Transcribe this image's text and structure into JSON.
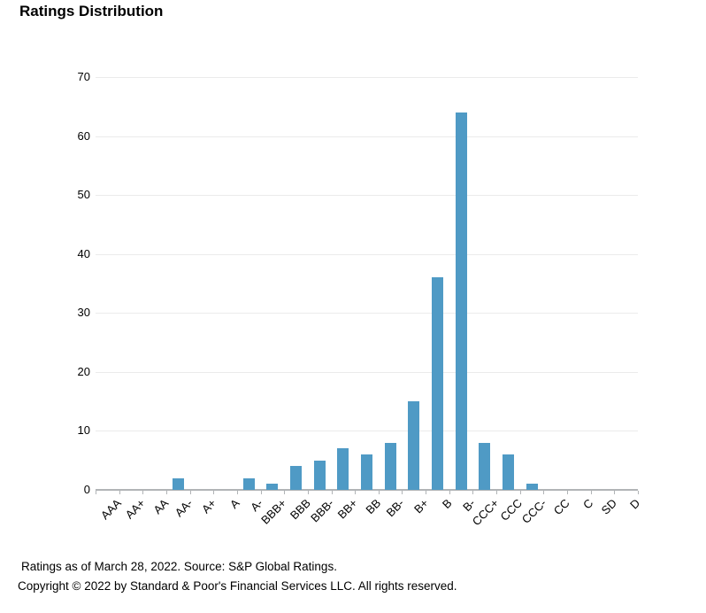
{
  "title": "Ratings Distribution",
  "footer": {
    "line1": "Ratings as of March 28, 2022. Source: S&P Global Ratings.",
    "line2": "Copyright © 2022 by Standard & Poor's Financial Services LLC. All rights reserved."
  },
  "colors": {
    "bar": "#4F9AC5",
    "gridline": "#EBEBEB",
    "axis": "#B1B4B6",
    "text": "#000000",
    "background": "#FFFFFF"
  },
  "chart_data": {
    "type": "bar",
    "title": "Ratings Distribution",
    "categories": [
      "AAA",
      "AA+",
      "AA",
      "AA-",
      "A+",
      "A",
      "A-",
      "BBB+",
      "BBB",
      "BBB-",
      "BB+",
      "BB",
      "BB-",
      "B+",
      "B",
      "B-",
      "CCC+",
      "CCC",
      "CCC-",
      "CC",
      "C",
      "SD",
      "D"
    ],
    "values": [
      0,
      0,
      0,
      2,
      0,
      0,
      2,
      1,
      4,
      5,
      7,
      6,
      8,
      15,
      36,
      64,
      8,
      6,
      1,
      0,
      0,
      0,
      0
    ],
    "xlabel": "",
    "ylabel": "",
    "ylim": [
      0,
      70
    ],
    "yticks": [
      0,
      10,
      20,
      30,
      40,
      50,
      60,
      70
    ],
    "grid": true,
    "legend": false
  }
}
